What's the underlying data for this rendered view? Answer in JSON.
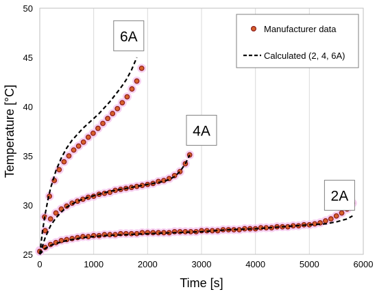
{
  "chart_data": {
    "type": "scatter",
    "xlabel": "Time [s]",
    "ylabel": "Temperature [°C]",
    "xlim": [
      0,
      6000
    ],
    "ylim": [
      25,
      50
    ],
    "xticks": [
      "0",
      "1000",
      "2000",
      "3000",
      "4000",
      "5000",
      "6000"
    ],
    "yticks": [
      "25",
      "30",
      "35",
      "40",
      "45",
      "50"
    ],
    "grid": "vertical",
    "legend": {
      "placement": "top-right",
      "entries": [
        "Manufacturer data",
        "Calculated (2, 4, 6A)"
      ]
    },
    "annotations": [
      {
        "text": "6A",
        "x": 1650,
        "y": 47.2
      },
      {
        "text": "4A",
        "x": 3000,
        "y": 37.6
      },
      {
        "text": "2A",
        "x": 5560,
        "y": 31.0
      }
    ],
    "series": [
      {
        "name": "Manufacturer data",
        "kind": "markers",
        "current": "6A",
        "x": [
          0,
          90,
          180,
          270,
          360,
          450,
          540,
          630,
          720,
          810,
          900,
          990,
          1080,
          1170,
          1260,
          1350,
          1440,
          1530,
          1620,
          1710,
          1800,
          1890
        ],
        "y": [
          25.4,
          28.8,
          30.9,
          32.5,
          33.6,
          34.4,
          35.0,
          35.6,
          36.0,
          36.4,
          36.9,
          37.3,
          37.8,
          38.3,
          38.8,
          39.3,
          39.8,
          40.4,
          41.0,
          41.8,
          42.6,
          43.9
        ]
      },
      {
        "name": "Manufacturer data",
        "kind": "markers",
        "current": "4A",
        "x": [
          0,
          100,
          200,
          300,
          400,
          500,
          600,
          700,
          800,
          900,
          1000,
          1100,
          1200,
          1300,
          1400,
          1500,
          1600,
          1700,
          1800,
          1900,
          2000,
          2100,
          2200,
          2300,
          2400,
          2500,
          2600,
          2700,
          2780
        ],
        "y": [
          25.3,
          27.4,
          28.6,
          29.2,
          29.6,
          29.9,
          30.2,
          30.4,
          30.6,
          30.8,
          30.9,
          31.1,
          31.2,
          31.3,
          31.5,
          31.6,
          31.7,
          31.8,
          31.9,
          32.0,
          32.1,
          32.2,
          32.4,
          32.5,
          32.7,
          33.0,
          33.4,
          34.2,
          35.1
        ]
      },
      {
        "name": "Manufacturer data",
        "kind": "markers",
        "current": "2A",
        "x": [
          0,
          100,
          200,
          300,
          400,
          500,
          600,
          700,
          800,
          900,
          1000,
          1100,
          1200,
          1300,
          1400,
          1500,
          1600,
          1700,
          1800,
          1900,
          2000,
          2100,
          2200,
          2300,
          2400,
          2500,
          2600,
          2700,
          2800,
          2900,
          3000,
          3100,
          3200,
          3300,
          3400,
          3500,
          3600,
          3700,
          3800,
          3900,
          4000,
          4100,
          4200,
          4300,
          4400,
          4500,
          4600,
          4700,
          4800,
          4900,
          5000,
          5100,
          5200,
          5300,
          5400,
          5500,
          5600,
          5700,
          5800
        ],
        "y": [
          25.3,
          25.7,
          26.0,
          26.2,
          26.4,
          26.5,
          26.6,
          26.7,
          26.8,
          26.8,
          26.9,
          26.9,
          27.0,
          27.0,
          27.0,
          27.1,
          27.1,
          27.1,
          27.1,
          27.2,
          27.2,
          27.2,
          27.2,
          27.2,
          27.2,
          27.3,
          27.3,
          27.3,
          27.3,
          27.3,
          27.4,
          27.4,
          27.4,
          27.4,
          27.5,
          27.5,
          27.5,
          27.5,
          27.6,
          27.6,
          27.6,
          27.7,
          27.7,
          27.7,
          27.8,
          27.8,
          27.8,
          27.9,
          27.9,
          28.0,
          28.0,
          28.1,
          28.2,
          28.4,
          28.6,
          28.9,
          29.2,
          29.6,
          30.2
        ]
      },
      {
        "name": "Calculated (2, 4, 6A)",
        "kind": "dashed-line",
        "current": "6A",
        "x": [
          0,
          50,
          100,
          150,
          200,
          300,
          400,
          500,
          600,
          700,
          800,
          900,
          1000,
          1100,
          1200,
          1300,
          1400,
          1500,
          1600,
          1700,
          1800
        ],
        "y": [
          25.0,
          27.3,
          29.1,
          30.5,
          31.7,
          33.5,
          34.8,
          35.8,
          36.6,
          37.2,
          37.8,
          38.3,
          38.8,
          39.3,
          39.9,
          40.5,
          41.2,
          41.9,
          42.7,
          43.7,
          45.0
        ]
      },
      {
        "name": "Calculated (2, 4, 6A)",
        "kind": "dashed-line",
        "current": "4A",
        "x": [
          0,
          100,
          200,
          300,
          400,
          500,
          700,
          900,
          1100,
          1300,
          1500,
          1700,
          1900,
          2100,
          2300,
          2400,
          2500,
          2600,
          2700,
          2780
        ],
        "y": [
          25.0,
          26.7,
          27.9,
          28.7,
          29.3,
          29.8,
          30.4,
          30.8,
          31.1,
          31.4,
          31.6,
          31.8,
          32.0,
          32.2,
          32.4,
          32.6,
          32.9,
          33.4,
          34.2,
          35.1
        ]
      },
      {
        "name": "Calculated (2, 4, 6A)",
        "kind": "dashed-line",
        "current": "2A",
        "x": [
          0,
          100,
          200,
          300,
          500,
          800,
          1200,
          1600,
          2000,
          2500,
          3000,
          3500,
          4000,
          4500,
          5000,
          5300,
          5500,
          5700,
          5800
        ],
        "y": [
          25.0,
          25.6,
          25.9,
          26.1,
          26.4,
          26.7,
          26.9,
          27.0,
          27.1,
          27.2,
          27.3,
          27.5,
          27.6,
          27.8,
          28.0,
          28.1,
          28.3,
          28.6,
          28.9
        ]
      }
    ]
  }
}
